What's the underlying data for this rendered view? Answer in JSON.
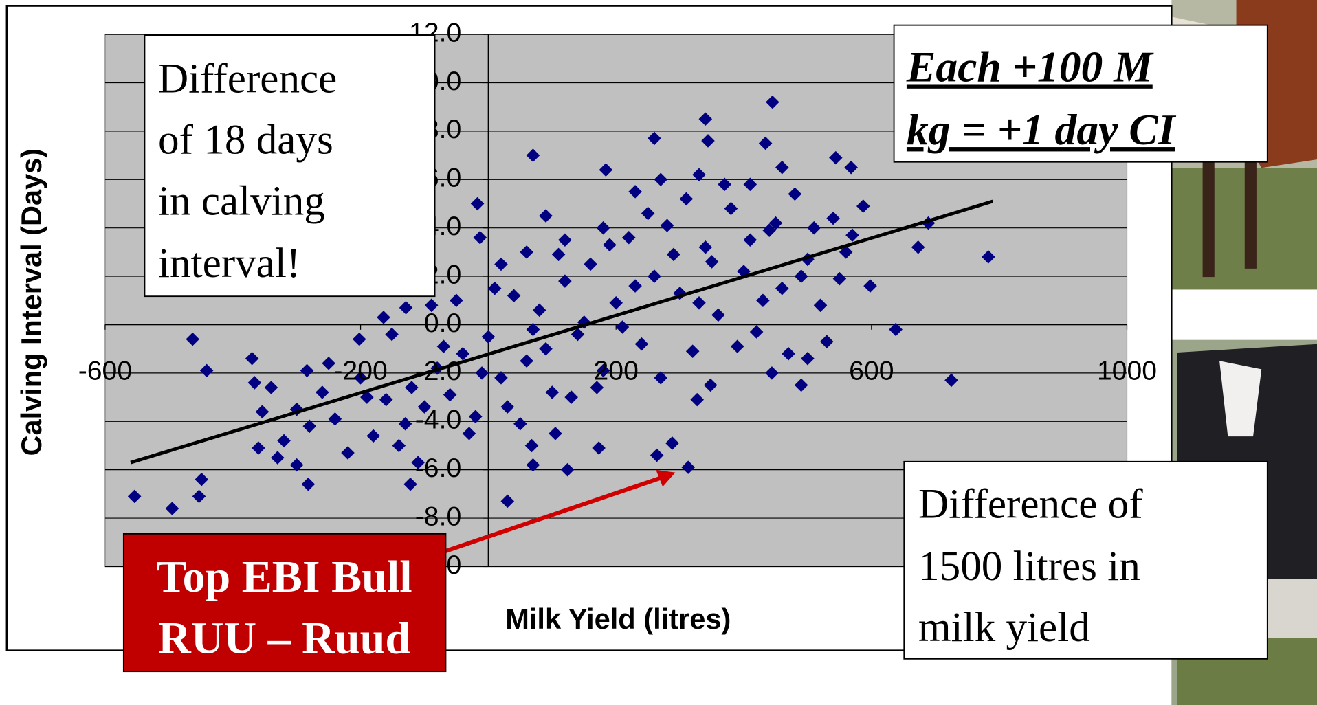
{
  "chart_data": {
    "type": "scatter",
    "x_label": "Milk Yield (litres)",
    "y_label": "Calving Interval (Days)",
    "color": "#000080",
    "xlim": [
      -600,
      1000
    ],
    "xticks": [
      -600,
      -200,
      200,
      600,
      1000
    ],
    "ylim": [
      -10,
      12
    ],
    "yticks": [
      {
        "value": 12,
        "label": "12.0"
      },
      {
        "value": 10,
        "label": "10.0"
      },
      {
        "value": 8,
        "label": "8.0"
      },
      {
        "value": 6,
        "label": "6.0"
      },
      {
        "value": 4,
        "label": "4.0"
      },
      {
        "value": 2,
        "label": "2.0"
      },
      {
        "value": 0,
        "label": "0.0"
      },
      {
        "value": -2,
        "label": "-2.0"
      },
      {
        "value": -4,
        "label": "-4.0"
      },
      {
        "value": -6,
        "label": "-6.0"
      },
      {
        "value": -8,
        "label": "-8.0"
      },
      {
        "value": -10,
        "label": "-10.0"
      }
    ],
    "grid": true,
    "x": [
      -554,
      -495,
      -453,
      -449,
      -463,
      -441,
      -370,
      -366,
      -354,
      -330,
      -282,
      -284,
      -202,
      -164,
      -151,
      -129,
      -122,
      -110,
      -89,
      -17,
      30,
      -13,
      70,
      68,
      70,
      105,
      124,
      173,
      184,
      260,
      264,
      288,
      313,
      340,
      344,
      445,
      434,
      544,
      568,
      587,
      598,
      638,
      673,
      689,
      725,
      783,
      490,
      500,
      444,
      327,
      348,
      -300,
      -280,
      -260,
      -240,
      -220,
      -200,
      -180,
      -160,
      -140,
      -120,
      -100,
      -80,
      -60,
      -40,
      -20,
      0,
      20,
      40,
      60,
      80,
      100,
      120,
      140,
      160,
      180,
      200,
      220,
      240,
      260,
      280,
      300,
      320,
      340,
      360,
      380,
      400,
      420,
      440,
      460,
      480,
      500,
      520,
      540,
      560,
      -320,
      -340,
      -360,
      -300,
      -250,
      -190,
      -130,
      -70,
      -10,
      30,
      70,
      110,
      130,
      150,
      170,
      190,
      210,
      230,
      250,
      270,
      290,
      310,
      330,
      350,
      370,
      390,
      410,
      430,
      450,
      470,
      490,
      510,
      530,
      550,
      570,
      -50,
      -30,
      10,
      50,
      90,
      230,
      270,
      330,
      410,
      460,
      180,
      120,
      90,
      60,
      20
    ],
    "values": [
      -7.1,
      -7.6,
      -7.1,
      -6.4,
      -0.6,
      -1.9,
      -1.4,
      -2.4,
      -3.6,
      -5.5,
      -6.6,
      -1.9,
      -0.6,
      0.3,
      -0.4,
      0.7,
      -6.6,
      -5.7,
      0.8,
      5.0,
      -7.3,
      3.6,
      7.0,
      -5.0,
      -5.8,
      -4.5,
      -6.0,
      -5.1,
      6.4,
      7.7,
      -5.4,
      -4.9,
      -5.9,
      8.5,
      7.6,
      9.2,
      7.5,
      6.9,
      6.5,
      4.9,
      1.6,
      -0.2,
      3.2,
      4.2,
      -2.3,
      2.8,
      -2.5,
      -1.4,
      -2.0,
      -3.1,
      -2.5,
      -3.5,
      -4.2,
      -2.8,
      -3.9,
      -5.3,
      -2.2,
      -4.6,
      -3.1,
      -5.0,
      -2.6,
      -3.4,
      -1.8,
      -2.9,
      -1.2,
      -3.8,
      -0.5,
      -2.2,
      1.2,
      -1.5,
      0.6,
      -2.8,
      1.8,
      -0.4,
      2.5,
      -1.9,
      0.9,
      3.6,
      -0.8,
      2.0,
      4.1,
      1.3,
      -1.1,
      3.2,
      0.4,
      4.8,
      2.2,
      -0.3,
      3.9,
      1.5,
      5.4,
      2.7,
      0.8,
      4.4,
      3.0,
      -4.8,
      -2.6,
      -5.1,
      -5.8,
      -1.6,
      -3.0,
      -4.1,
      -0.9,
      -2.0,
      -3.4,
      -0.2,
      2.9,
      -3.0,
      0.1,
      -2.6,
      3.3,
      -0.1,
      1.6,
      4.6,
      -2.2,
      2.9,
      5.2,
      0.9,
      2.6,
      5.8,
      -0.9,
      3.5,
      1.0,
      4.2,
      -1.2,
      2.0,
      4.0,
      -0.7,
      1.9,
      3.7,
      1.0,
      -4.5,
      1.5,
      -4.1,
      -1.0,
      5.5,
      6.0,
      6.2,
      5.8,
      6.5,
      4.0,
      3.5,
      4.5,
      3.0,
      2.5
    ],
    "trendline": {
      "x": [
        -560,
        790
      ],
      "values": [
        -5.7,
        5.1
      ],
      "color": "#000000"
    }
  },
  "annotations": {
    "difference_days": [
      "Difference",
      "of 18 days",
      "in calving",
      "interval!"
    ],
    "per_100": [
      "Each +100 M",
      "kg = +1 day CI"
    ],
    "difference_litres": [
      "Difference of",
      "1500 litres in",
      "milk yield"
    ],
    "bull": [
      "Top EBI Bull",
      "RUU – Ruud"
    ]
  }
}
